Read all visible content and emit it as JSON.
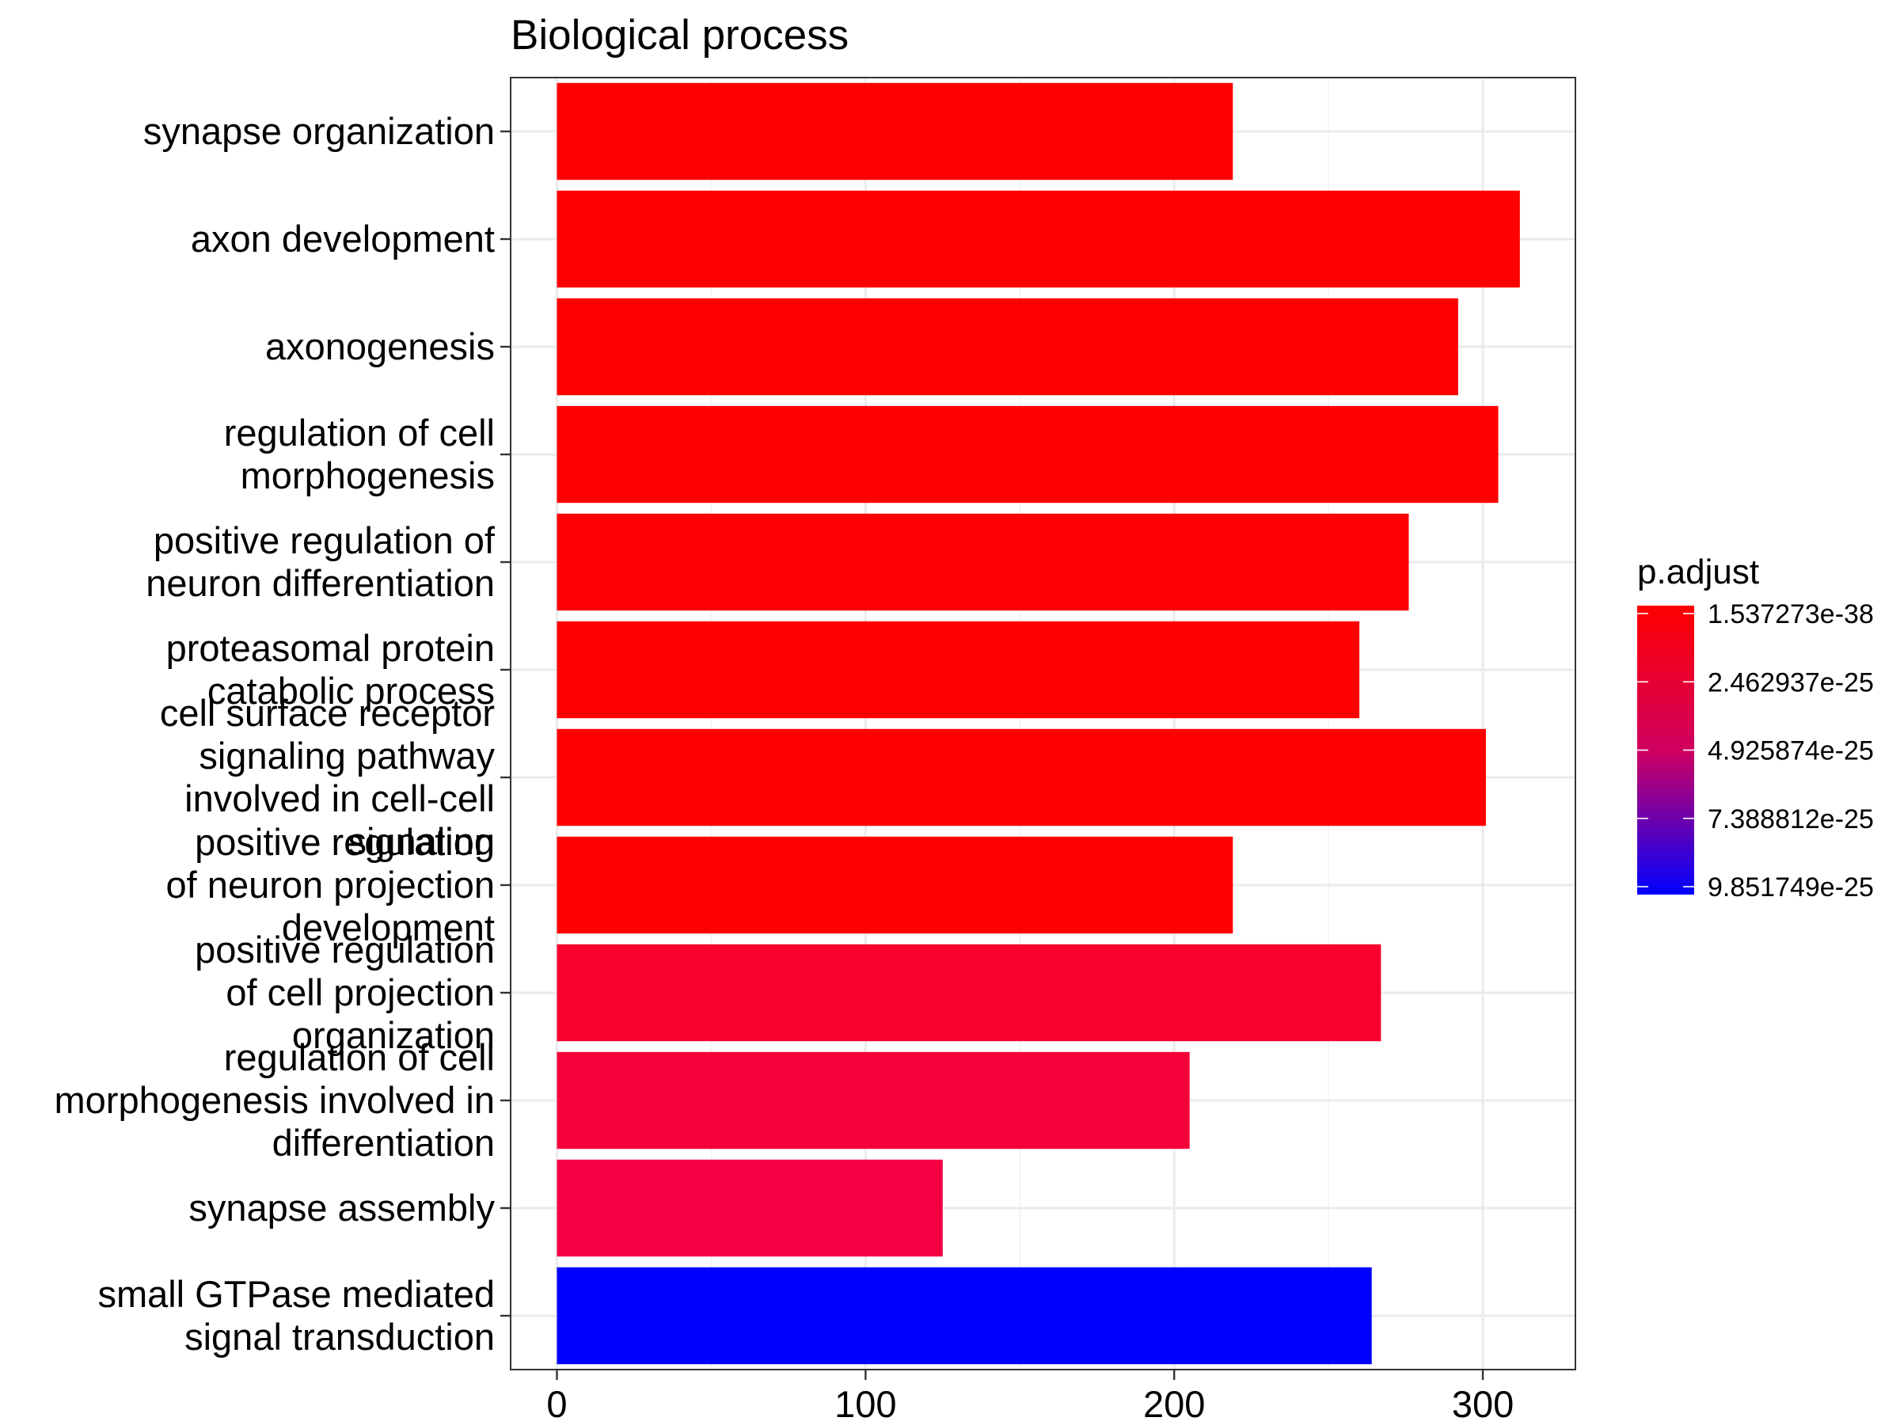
{
  "chart_data": {
    "type": "bar",
    "orientation": "horizontal",
    "title": "Biological process",
    "xlabel": "",
    "ylabel": "",
    "xlim": [
      -15,
      330
    ],
    "x_ticks": [
      "0",
      "100",
      "200",
      "300"
    ],
    "grid": true,
    "categories": [
      "synapse organization",
      "axon development",
      "axonogenesis",
      "regulation of cell morphogenesis",
      "positive regulation of neuron differentiation",
      "proteasomal protein catabolic process",
      "cell surface receptor signaling pathway involved in cell-cell signaling",
      "positive regulation of neuron projection development",
      "positive regulation of cell projection organization",
      "regulation of cell morphogenesis involved in differentiation",
      "synapse assembly",
      "small GTPase mediated signal transduction"
    ],
    "category_lines": [
      [
        "synapse organization"
      ],
      [
        "axon development"
      ],
      [
        "axonogenesis"
      ],
      [
        "regulation of cell",
        "morphogenesis"
      ],
      [
        "positive regulation of",
        "neuron differentiation"
      ],
      [
        "proteasomal protein",
        "catabolic process"
      ],
      [
        "cell surface receptor",
        "signaling pathway",
        "involved in cell-cell",
        "signaling"
      ],
      [
        "positive regulation",
        "of neuron projection",
        "development"
      ],
      [
        "positive regulation",
        "of cell projection",
        "organization"
      ],
      [
        "regulation of cell",
        "morphogenesis involved in",
        "differentiation"
      ],
      [
        "synapse assembly"
      ],
      [
        "small GTPase mediated",
        "signal transduction"
      ]
    ],
    "values": [
      219,
      312,
      292,
      305,
      276,
      260,
      301,
      219,
      267,
      205,
      125,
      264
    ],
    "colors": [
      "#ff0000",
      "#ff0000",
      "#ff0000",
      "#ff0000",
      "#fe0003",
      "#ff0000",
      "#ff0000",
      "#ff0000",
      "#f9002e",
      "#f6003a",
      "#f40042",
      "#0000ff"
    ],
    "legend": {
      "title": "p.adjust",
      "position": "right",
      "labels": [
        "1.537273e-38",
        "2.462937e-25",
        "4.925874e-25",
        "7.388812e-25",
        "9.851749e-25"
      ],
      "color_low": "#ff0000",
      "color_high": "#0000ff"
    }
  }
}
